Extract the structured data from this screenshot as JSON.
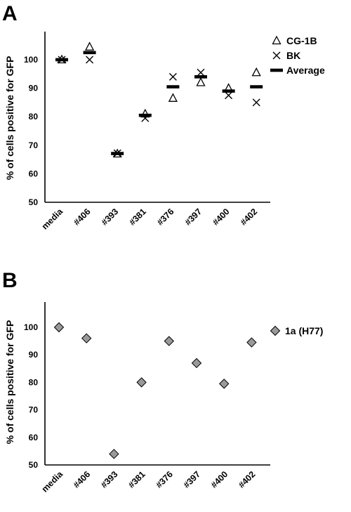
{
  "chart_data": [
    {
      "panel": "A",
      "type": "scatter",
      "categories": [
        "media",
        "#406",
        "#393",
        "#381",
        "#376",
        "#397",
        "#400",
        "#402"
      ],
      "ylabel": "% of cells positive for GFP",
      "ylim": [
        50,
        110
      ],
      "yticks": [
        50,
        60,
        70,
        80,
        90,
        100
      ],
      "series": [
        {
          "name": "CG-1B",
          "marker": "triangle",
          "values": [
            100,
            104.5,
            67,
            81,
            86.5,
            92,
            90,
            95.5
          ]
        },
        {
          "name": "BK",
          "marker": "x",
          "values": [
            100,
            100,
            67.2,
            79.5,
            94,
            95.5,
            87.5,
            85
          ]
        },
        {
          "name": "Average",
          "marker": "dash",
          "values": [
            100,
            102.5,
            67.1,
            80.5,
            90.5,
            94,
            89,
            90.5
          ]
        }
      ],
      "legend_position": "top-right"
    },
    {
      "panel": "B",
      "type": "scatter",
      "categories": [
        "media",
        "#406",
        "#393",
        "#381",
        "#376",
        "#397",
        "#400",
        "#402"
      ],
      "ylabel": "% of cells positive for GFP",
      "ylim": [
        50,
        110
      ],
      "yticks": [
        50,
        60,
        70,
        80,
        90,
        100
      ],
      "series": [
        {
          "name": "1a (H77)",
          "marker": "diamond",
          "color": "#999999",
          "values": [
            100,
            96,
            54,
            80,
            95,
            87,
            79.5,
            94.5
          ]
        }
      ],
      "legend_position": "top-right"
    }
  ]
}
